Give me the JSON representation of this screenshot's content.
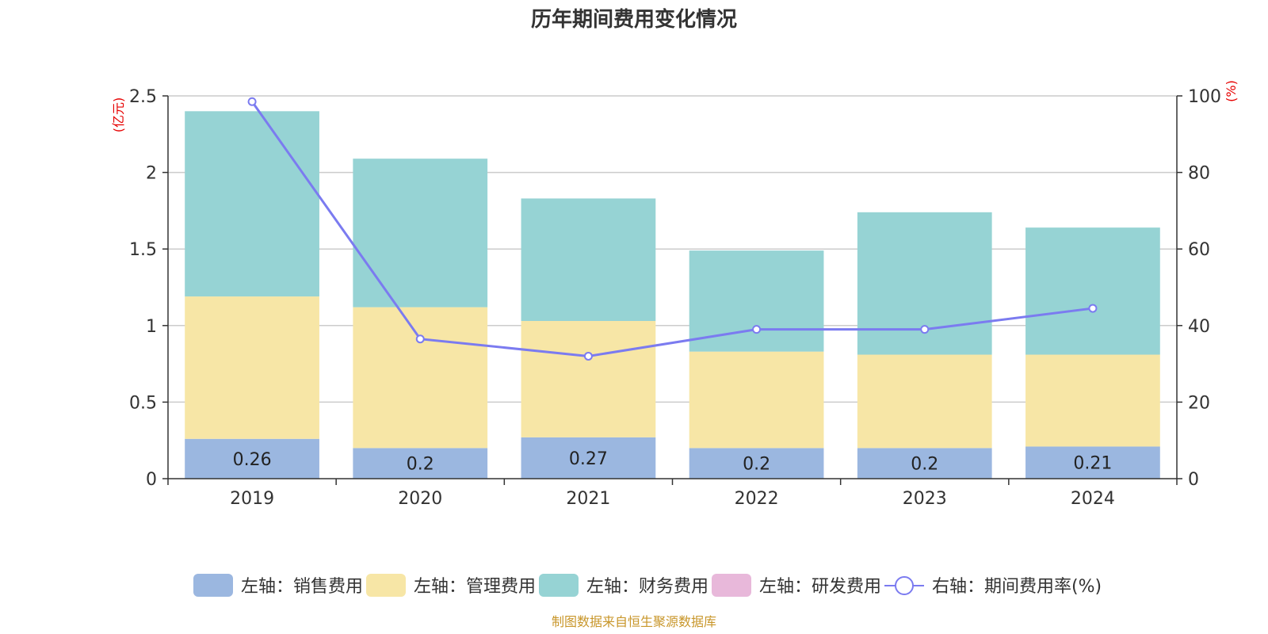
{
  "chart_data": {
    "type": "bar",
    "stacked": true,
    "title": "历年期间费用变化情况",
    "categories": [
      "2019",
      "2020",
      "2021",
      "2022",
      "2023",
      "2024"
    ],
    "y_left": {
      "unit": "(亿元)",
      "ylim": [
        0,
        2.5
      ],
      "ticks": [
        "0",
        "0.5",
        "1",
        "1.5",
        "2",
        "2.5"
      ]
    },
    "y_right": {
      "unit": "(%)",
      "ylim": [
        0,
        100
      ],
      "ticks": [
        "0",
        "20",
        "40",
        "60",
        "80",
        "100"
      ]
    },
    "grid": true,
    "legend_position": "bottom",
    "series": [
      {
        "name": "左轴：销售费用",
        "axis": "left",
        "type": "bar",
        "color": "#9bb7e0",
        "values": [
          0.26,
          0.2,
          0.27,
          0.2,
          0.2,
          0.21
        ],
        "labels": [
          "0.26",
          "0.2",
          "0.27",
          "0.2",
          "0.2",
          "0.21"
        ]
      },
      {
        "name": "左轴：管理费用",
        "axis": "left",
        "type": "bar",
        "color": "#f7e6a6",
        "values": [
          0.93,
          0.92,
          0.76,
          0.63,
          0.61,
          0.6
        ]
      },
      {
        "name": "左轴：财务费用",
        "axis": "left",
        "type": "bar",
        "color": "#96d3d4",
        "values": [
          1.21,
          0.97,
          0.8,
          0.66,
          0.93,
          0.83
        ]
      },
      {
        "name": "左轴：研发费用",
        "axis": "left",
        "type": "bar",
        "color": "#e8b8da",
        "values": [
          0,
          0,
          0,
          0,
          0,
          0
        ]
      },
      {
        "name": "右轴：期间费用率(%)",
        "axis": "right",
        "type": "line",
        "color": "#7b7bf0",
        "values": [
          98.5,
          36.5,
          32,
          39,
          39,
          44.5
        ]
      }
    ]
  },
  "footer": "制图数据来自恒生聚源数据库"
}
